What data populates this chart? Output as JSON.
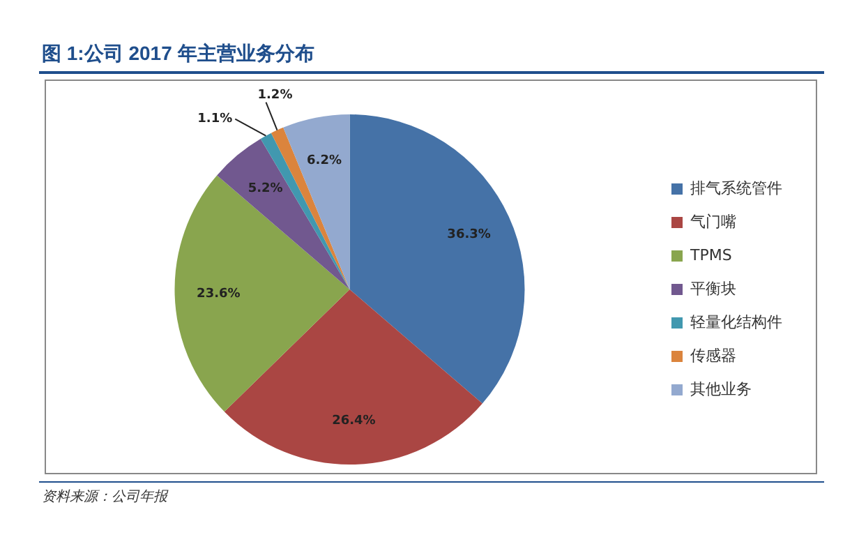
{
  "chart_data": {
    "type": "pie",
    "title": "图 1:公司 2017 年主营业务分布",
    "categories": [
      "排气系统管件",
      "气门嘴",
      "TPMS",
      "平衡块",
      "轻量化结构件",
      "传感器",
      "其他业务"
    ],
    "values": [
      36.3,
      26.4,
      23.6,
      5.2,
      1.1,
      1.2,
      6.2
    ],
    "value_labels": [
      "36.3%",
      "26.4%",
      "23.6%",
      "5.2%",
      "1.1%",
      "1.2%",
      "6.2%"
    ],
    "colors": [
      "#4572a7",
      "#aa4643",
      "#89a54e",
      "#71588f",
      "#4198af",
      "#db843d",
      "#93a9cf"
    ],
    "legend": "right",
    "annotations": [
      "资料来源：公司年报"
    ]
  }
}
